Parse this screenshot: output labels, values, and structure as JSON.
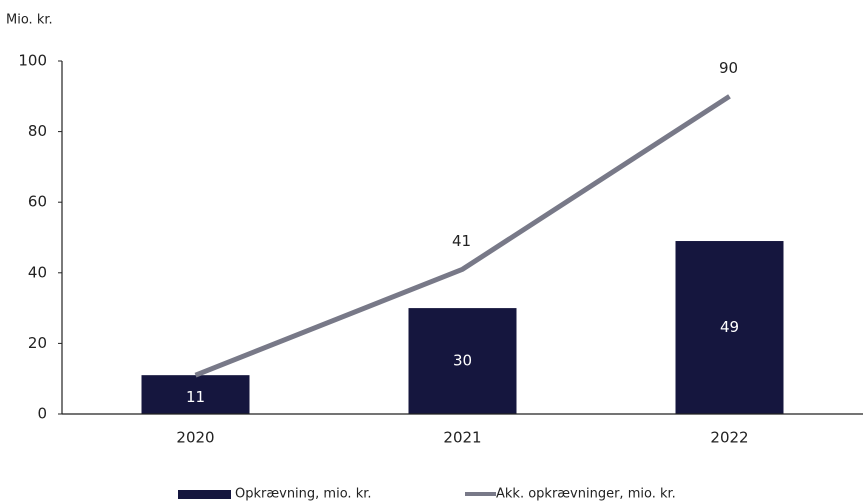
{
  "chart_data": {
    "type": "bar",
    "y_label": "Mio. kr.",
    "categories": [
      "2020",
      "2021",
      "2022"
    ],
    "series": [
      {
        "name": "Opkrævning, mio. kr.",
        "type": "bar",
        "color": "#15163e",
        "values": [
          11,
          30,
          49
        ]
      },
      {
        "name": "Akk. opkrævninger, mio. kr.",
        "type": "line",
        "color": "#787988",
        "values": [
          11,
          41,
          90
        ],
        "value_labels": [
          null,
          "41",
          "90"
        ]
      }
    ],
    "ylim": [
      0,
      100
    ],
    "yticks": [
      0,
      20,
      40,
      60,
      80,
      100
    ],
    "grid": false,
    "legend": "bottom"
  }
}
